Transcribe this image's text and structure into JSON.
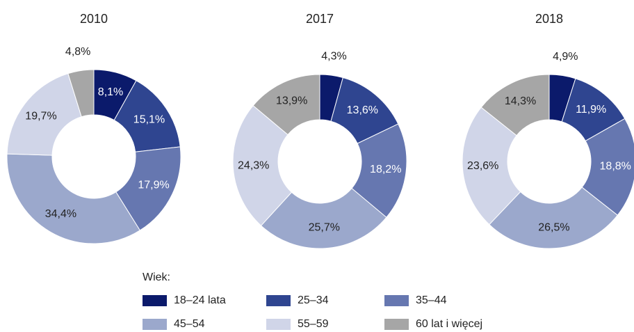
{
  "chart_data": [
    {
      "type": "pie",
      "title": "2010",
      "categories": [
        "18–24 lata",
        "25–34",
        "35–44",
        "45–54",
        "55–59",
        "60 lat i więcej"
      ],
      "values": [
        8.1,
        15.1,
        17.9,
        34.4,
        19.7,
        4.8
      ],
      "value_labels": [
        "8,1%",
        "15,1%",
        "17,9%",
        "34,4%",
        "19,7%",
        "4,8%"
      ],
      "colors": [
        "#0b1a6b",
        "#2f4590",
        "#6677b0",
        "#9ba8cc",
        "#d0d5e8",
        "#a6a6a6"
      ]
    },
    {
      "type": "pie",
      "title": "2017",
      "categories": [
        "18–24 lata",
        "25–34",
        "35–44",
        "45–54",
        "55–59",
        "60 lat i więcej"
      ],
      "values": [
        4.3,
        13.6,
        18.2,
        25.7,
        24.3,
        13.9
      ],
      "value_labels": [
        "4,3%",
        "13,6%",
        "18,2%",
        "25,7%",
        "24,3%",
        "13,9%"
      ],
      "colors": [
        "#0b1a6b",
        "#2f4590",
        "#6677b0",
        "#9ba8cc",
        "#d0d5e8",
        "#a6a6a6"
      ]
    },
    {
      "type": "pie",
      "title": "2018",
      "categories": [
        "18–24 lata",
        "25–34",
        "35–44",
        "45–54",
        "55–59",
        "60 lat i więcej"
      ],
      "values": [
        4.9,
        11.9,
        18.8,
        26.5,
        23.6,
        14.3
      ],
      "value_labels": [
        "4,9%",
        "11,9%",
        "18,8%",
        "26,5%",
        "23,6%",
        "14,3%"
      ],
      "colors": [
        "#0b1a6b",
        "#2f4590",
        "#6677b0",
        "#9ba8cc",
        "#d0d5e8",
        "#a6a6a6"
      ]
    }
  ],
  "legend_title": "Wiek:"
}
